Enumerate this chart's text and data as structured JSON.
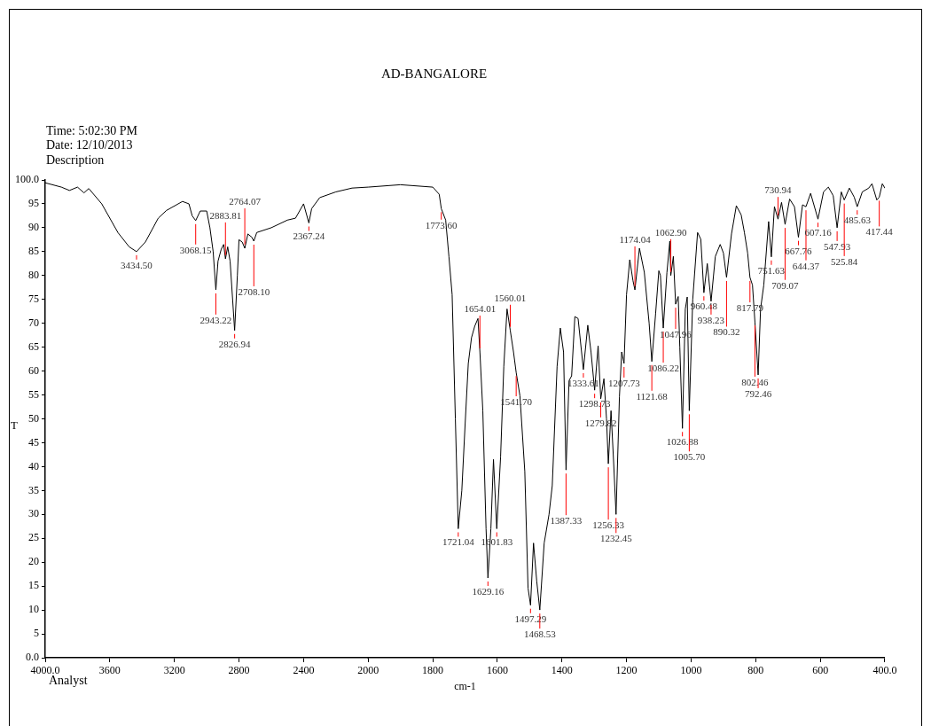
{
  "chart_data": [
    {
      "type": "line",
      "ylabel": "T",
      "xlim": [
        4000,
        2000
      ],
      "ylim": [
        0,
        100
      ],
      "xticks": [
        {
          "value": 4000,
          "label": "4000.0"
        },
        3600,
        3200,
        2800,
        2400,
        2000
      ],
      "yticks": [
        {
          "value": 0,
          "label": "0.0"
        },
        5,
        10,
        15,
        20,
        25,
        30,
        35,
        40,
        45,
        50,
        55,
        60,
        65,
        70,
        75,
        80,
        85,
        90,
        95,
        {
          "value": 100,
          "label": "100.0"
        }
      ],
      "grid": false,
      "legend": false,
      "marker": "none",
      "line_style": "solid",
      "series": [
        {
          "color": "#000000",
          "x": [
            4000,
            3900,
            3850,
            3800,
            3760,
            3730,
            3650,
            3550,
            3480,
            3434.5,
            3380,
            3300,
            3250,
            3150,
            3110,
            3090,
            3068.15,
            3040,
            3000,
            2980,
            2960,
            2943.22,
            2930,
            2910,
            2895,
            2883.81,
            2870,
            2855,
            2826.94,
            2810,
            2800,
            2780,
            2764.07,
            2745,
            2720,
            2708.1,
            2690,
            2600,
            2500,
            2450,
            2400,
            2367.24,
            2350,
            2300,
            2200,
            2100,
            2000
          ],
          "values": [
            99.4,
            98.5,
            97.8,
            98.5,
            97.3,
            98.2,
            95,
            89,
            86,
            85,
            87,
            92,
            93.6,
            95.5,
            95,
            92.5,
            91.5,
            93.5,
            93.5,
            90,
            85,
            77,
            83,
            85.5,
            86.5,
            83.5,
            86,
            83,
            68.5,
            80,
            87.5,
            87,
            85.7,
            88.7,
            88,
            87.2,
            89,
            90,
            91.6,
            92,
            95,
            91,
            94,
            96.3,
            97.5,
            98.3,
            98.5
          ]
        }
      ],
      "annotations": [
        "Time: 5:02:30 PM",
        "Date: 12/10/2013",
        "Description",
        {
          "text": "3434.50",
          "x": 3434.5,
          "y": 85
        },
        {
          "text": "3068.15",
          "x": 3068.15,
          "y": 91.5
        },
        {
          "text": "2943.22",
          "x": 2943.22,
          "y": 77
        },
        {
          "text": "2883.81",
          "x": 2883.81,
          "y": 83.5
        },
        {
          "text": "2826.94",
          "x": 2826.94,
          "y": 68.5
        },
        {
          "text": "2764.07",
          "x": 2764.07,
          "y": 85.7
        },
        {
          "text": "2708.10",
          "x": 2708.1,
          "y": 87.2
        },
        {
          "text": "2367.24",
          "x": 2367.24,
          "y": 91
        },
        "Analyst"
      ]
    },
    {
      "type": "line",
      "title": "AD-BANGALORE",
      "xlabel": "cm-1",
      "xlim": [
        2000,
        400
      ],
      "ylim": [
        0,
        100
      ],
      "xticks": [
        1800,
        1600,
        1400,
        1200,
        1000,
        800,
        600,
        {
          "value": 400,
          "label": "400.0"
        }
      ],
      "tick_labels": "x",
      "grid": false,
      "legend": false,
      "marker": "none",
      "line_style": "solid",
      "series": [
        {
          "color": "#000000",
          "x": [
            2000,
            1900,
            1800,
            1780,
            1773.6,
            1760,
            1750,
            1740,
            1730,
            1721.04,
            1710,
            1700,
            1690,
            1680,
            1670,
            1660,
            1654.01,
            1645,
            1635,
            1629.16,
            1620,
            1612,
            1601.83,
            1590,
            1580,
            1570,
            1560.01,
            1550,
            1541.7,
            1530,
            1515,
            1505,
            1497.29,
            1488,
            1478,
            1468.53,
            1455,
            1440,
            1430,
            1415,
            1405,
            1395,
            1387.33,
            1378,
            1370,
            1360,
            1350,
            1333.61,
            1320,
            1310,
            1298.73,
            1288,
            1279.82,
            1270,
            1262,
            1256.33,
            1248,
            1240,
            1232.45,
            1222,
            1215,
            1207.73,
            1200,
            1190,
            1180,
            1174.04,
            1160,
            1145,
            1130,
            1121.68,
            1110,
            1100,
            1095,
            1086.22,
            1075,
            1066,
            1062.9,
            1055,
            1047.96,
            1040,
            1035,
            1026.88,
            1018,
            1012,
            1005.7,
            995,
            980,
            970,
            960.48,
            950,
            938.23,
            925,
            910,
            900,
            890.32,
            875,
            860,
            845,
            835,
            825,
            817.79,
            810,
            802.46,
            792.46,
            785,
            775,
            760,
            751.63,
            742,
            730.94,
            720,
            709.07,
            695,
            680,
            667.76,
            655,
            644.37,
            630,
            607.16,
            590,
            575,
            560,
            547.93,
            535,
            525.84,
            510,
            495,
            485.63,
            470,
            450,
            440,
            425,
            417.44,
            408,
            400
          ],
          "values": [
            98.5,
            99,
            98.5,
            97,
            94,
            91.6,
            84,
            76,
            50,
            27,
            35,
            48.6,
            61.6,
            67,
            69.4,
            71,
            64,
            51.7,
            27,
            16.7,
            27,
            41.5,
            27,
            42,
            61,
            73,
            68.5,
            64,
            59.7,
            54.8,
            39,
            14.6,
            11,
            24,
            16,
            10,
            24,
            30,
            36,
            61,
            69,
            64,
            39.3,
            58,
            59,
            71.4,
            71,
            60.3,
            69.6,
            64,
            56,
            65.3,
            54.2,
            58.4,
            50,
            40.6,
            51.7,
            41,
            30,
            54.6,
            64,
            61.6,
            76,
            83.3,
            78.9,
            77,
            85.7,
            80.7,
            70,
            62,
            72,
            81,
            80,
            69,
            80.6,
            87.2,
            80,
            84,
            74,
            75.6,
            65,
            48,
            73,
            75.5,
            51.7,
            75,
            89,
            87.6,
            76.4,
            82.5,
            74.6,
            84,
            86.5,
            84.7,
            79.6,
            88.7,
            94.6,
            92.7,
            89,
            84.7,
            79.6,
            78,
            70.3,
            59.2,
            73,
            78,
            91.3,
            83.9,
            94.4,
            91.8,
            95.3,
            90.7,
            96,
            94.4,
            88,
            94.8,
            94.4,
            97.2,
            91.8,
            97.5,
            98.5,
            96.7,
            90,
            97.5,
            95.8,
            98.3,
            96.4,
            94.4,
            97.5,
            98.3,
            99.2,
            95.8,
            96.4,
            99.2,
            98.3
          ]
        }
      ],
      "annotations": [
        {
          "text": "1773.60",
          "x": 1773.6,
          "y": 94
        },
        {
          "text": "1721.04",
          "x": 1721.04,
          "y": 27
        },
        {
          "text": "1654.01",
          "x": 1654.01,
          "y": 64
        },
        {
          "text": "1629.16",
          "x": 1629.16,
          "y": 16.7
        },
        {
          "text": "1601.83",
          "x": 1601.83,
          "y": 27
        },
        {
          "text": "1560.01",
          "x": 1560.01,
          "y": 68.5
        },
        {
          "text": "1541.70",
          "x": 1541.7,
          "y": 59.7
        },
        {
          "text": "1497.29",
          "x": 1497.29,
          "y": 11
        },
        {
          "text": "1468.53",
          "x": 1468.53,
          "y": 10
        },
        {
          "text": "1387.33",
          "x": 1387.33,
          "y": 39.3
        },
        {
          "text": "1333.61",
          "x": 1333.61,
          "y": 60.3
        },
        {
          "text": "1298.73",
          "x": 1298.73,
          "y": 56
        },
        {
          "text": "1279.82",
          "x": 1279.82,
          "y": 54.2
        },
        {
          "text": "1256.33",
          "x": 1256.33,
          "y": 40.6
        },
        {
          "text": "1232.45",
          "x": 1232.45,
          "y": 30
        },
        {
          "text": "1207.73",
          "x": 1207.73,
          "y": 61.6
        },
        {
          "text": "1174.04",
          "x": 1174.04,
          "y": 77
        },
        {
          "text": "1121.68",
          "x": 1121.68,
          "y": 62
        },
        {
          "text": "1086.22",
          "x": 1086.22,
          "y": 69
        },
        {
          "text": "1062.90",
          "x": 1062.9,
          "y": 80
        },
        {
          "text": "1047.96",
          "x": 1047.96,
          "y": 74
        },
        {
          "text": "1026.88",
          "x": 1026.88,
          "y": 48
        },
        {
          "text": "1005.70",
          "x": 1005.7,
          "y": 51.7
        },
        {
          "text": "960.48",
          "x": 960.48,
          "y": 76.4
        },
        {
          "text": "938.23",
          "x": 938.23,
          "y": 74.6
        },
        {
          "text": "890.32",
          "x": 890.32,
          "y": 79.6
        },
        {
          "text": "817.79",
          "x": 817.79,
          "y": 79.6
        },
        {
          "text": "802.46",
          "x": 802.46,
          "y": 70.3
        },
        {
          "text": "792.46",
          "x": 792.46,
          "y": 59.2
        },
        {
          "text": "751.63",
          "x": 751.63,
          "y": 83.9
        },
        {
          "text": "730.94",
          "x": 730.94,
          "y": 91.8
        },
        {
          "text": "709.07",
          "x": 709.07,
          "y": 90.7
        },
        {
          "text": "667.76",
          "x": 667.76,
          "y": 88
        },
        {
          "text": "644.37",
          "x": 644.37,
          "y": 94.4
        },
        {
          "text": "607.16",
          "x": 607.16,
          "y": 91.8
        },
        {
          "text": "547.93",
          "x": 547.93,
          "y": 90
        },
        {
          "text": "525.84",
          "x": 525.84,
          "y": 95.8
        },
        {
          "text": "485.63",
          "x": 485.63,
          "y": 94.4
        },
        {
          "text": "417.44",
          "x": 417.44,
          "y": 96.4
        }
      ]
    }
  ]
}
